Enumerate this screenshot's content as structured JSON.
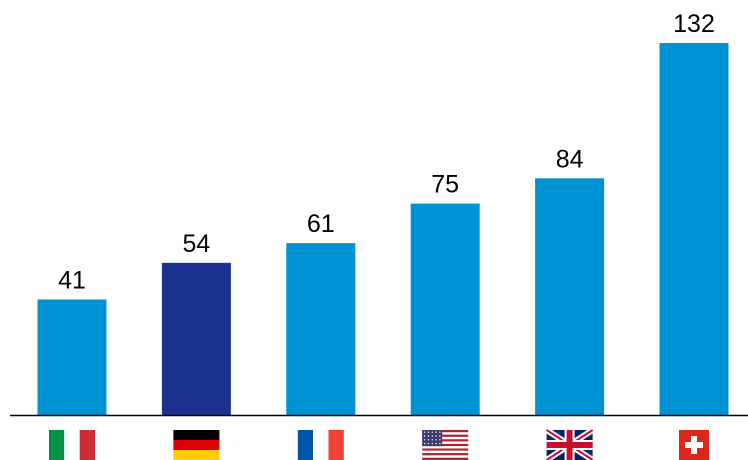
{
  "chart_data": {
    "type": "bar",
    "categories": [
      "Italy",
      "Germany",
      "France",
      "United States",
      "United Kingdom",
      "Switzerland"
    ],
    "category_icons": [
      "italy-flag-icon",
      "germany-flag-icon",
      "france-flag-icon",
      "usa-flag-icon",
      "uk-flag-icon",
      "switzerland-flag-icon"
    ],
    "values": [
      41,
      54,
      61,
      75,
      84,
      132
    ],
    "value_labels": [
      "41",
      "54",
      "61",
      "75",
      "84",
      "132"
    ],
    "bar_colors": [
      "#0093d3",
      "#1b3291",
      "#0093d3",
      "#0093d3",
      "#0093d3",
      "#0093d3"
    ],
    "highlight_category": "Germany",
    "title": "",
    "xlabel": "",
    "ylabel": "",
    "ylim": [
      0,
      141
    ],
    "grid": false,
    "legend": "none",
    "data_labels": "above-bars"
  },
  "colors": {
    "accent": "#0093d3",
    "highlight": "#1b3291",
    "axis": "#000000",
    "text": "#000000"
  }
}
